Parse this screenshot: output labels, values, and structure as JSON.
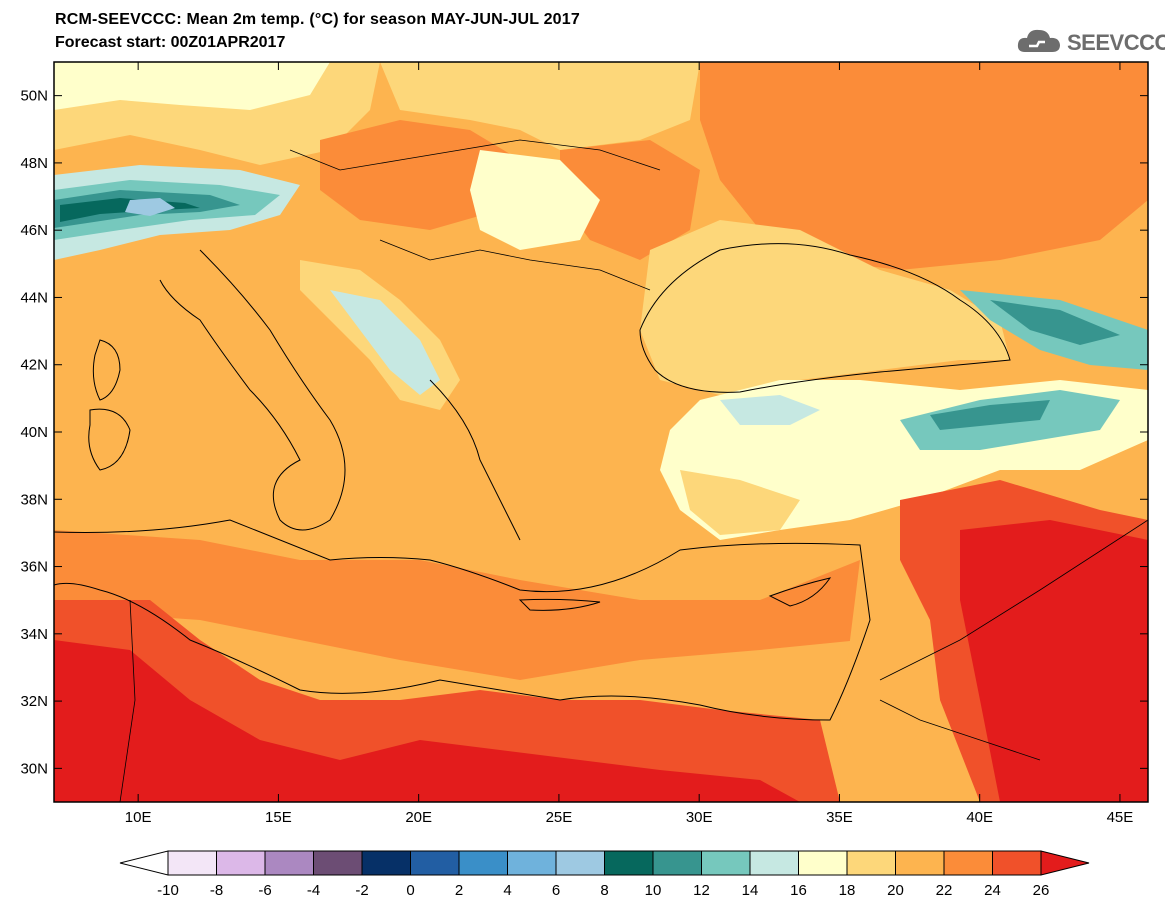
{
  "header": {
    "title": "RCM-SEEVCCC: Mean 2m temp. (°C) for season MAY-JUN-JUL 2017",
    "subtitle": "Forecast start: 00Z01APR2017",
    "logo_text": "SEEVCCC"
  },
  "map": {
    "region": "Eastern Mediterranean / Black Sea",
    "lon_range": [
      7,
      46
    ],
    "lat_range": [
      29,
      51
    ],
    "lat_ticks": [
      "50N",
      "48N",
      "46N",
      "44N",
      "42N",
      "40N",
      "38N",
      "36N",
      "34N",
      "32N",
      "30N"
    ],
    "lon_ticks": [
      "10E",
      "15E",
      "20E",
      "25E",
      "30E",
      "35E",
      "40E",
      "45E"
    ]
  },
  "colorbar": {
    "labels": [
      "-10",
      "-8",
      "-6",
      "-4",
      "-2",
      "0",
      "2",
      "4",
      "6",
      "8",
      "10",
      "12",
      "14",
      "16",
      "18",
      "20",
      "22",
      "24",
      "26"
    ],
    "colors": [
      "#f3e6f7",
      "#dcb8e8",
      "#ab88c1",
      "#6c4d74",
      "#063067",
      "#225ea3",
      "#3a8fc8",
      "#6fb2dc",
      "#9ec9e2",
      "#06685d",
      "#37958f",
      "#76c8bd",
      "#c6e8e2",
      "#ffffcb",
      "#fdd77a",
      "#fdb44f",
      "#fb8c39",
      "#f0512a",
      "#e31c1c"
    ],
    "under_color": "#ffffff",
    "over_color": "#e31c1c"
  }
}
